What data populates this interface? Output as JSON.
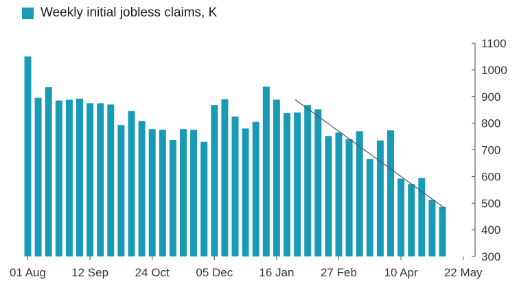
{
  "colors": {
    "bar": "#1a9bb5",
    "axis": "#444444",
    "trend": "#555555",
    "text": "#333333"
  },
  "chart_data": {
    "type": "bar",
    "legend": "Weekly initial jobless claims, K",
    "legend_position": "top-left",
    "y_axis_position": "right",
    "grid": false,
    "ylim": [
      300,
      1100
    ],
    "yticks": [
      300,
      400,
      500,
      600,
      700,
      800,
      900,
      1000,
      1100
    ],
    "xtick_labels": [
      "01 Aug",
      "12 Sep",
      "24 Oct",
      "05 Dec",
      "16 Jan",
      "27 Feb",
      "10 Apr",
      "22 May"
    ],
    "xtick_bar_index": [
      0,
      6,
      12,
      18,
      24,
      30,
      36,
      42
    ],
    "values": [
      1050,
      895,
      935,
      885,
      888,
      892,
      875,
      875,
      870,
      793,
      845,
      808,
      778,
      775,
      737,
      778,
      775,
      730,
      868,
      890,
      825,
      780,
      805,
      937,
      888,
      838,
      840,
      868,
      852,
      752,
      765,
      740,
      770,
      665,
      735,
      773,
      592,
      572,
      594,
      512,
      486
    ],
    "trendline": {
      "from_bar": 26,
      "from_value": 888,
      "to_bar": 40,
      "to_value": 478
    }
  }
}
